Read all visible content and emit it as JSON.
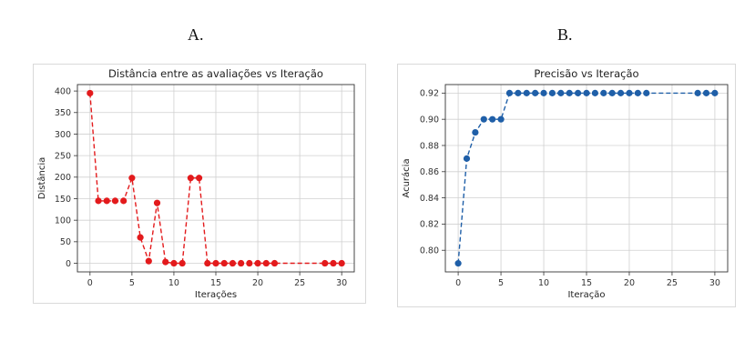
{
  "panels": [
    {
      "letter": "A."
    },
    {
      "letter": "B."
    }
  ],
  "colors": {
    "chart_a": "#e31a1c",
    "chart_b": "#1f5fa8",
    "grid": "#d0d0d0",
    "axis": "#333333"
  },
  "chart_data": [
    {
      "type": "line",
      "title": "Distância entre as avaliações vs Iteração",
      "xlabel": "Iterações",
      "ylabel": "Distância",
      "xlim": [
        -1.5,
        31.5
      ],
      "ylim": [
        -20,
        415
      ],
      "xticks": [
        0,
        5,
        10,
        15,
        20,
        25,
        30
      ],
      "yticks": [
        0,
        50,
        100,
        150,
        200,
        250,
        300,
        350,
        400
      ],
      "ytick_labels": [
        "0",
        "50",
        "100",
        "150",
        "200",
        "250",
        "300",
        "350",
        "400"
      ],
      "grid": true,
      "line_style": "dashed",
      "marker": "circle",
      "color": "#e31a1c",
      "x": [
        0,
        1,
        2,
        3,
        4,
        5,
        6,
        7,
        8,
        9,
        10,
        11,
        12,
        13,
        14,
        15,
        16,
        17,
        18,
        19,
        20,
        21,
        22,
        28,
        29,
        30
      ],
      "y": [
        395,
        145,
        145,
        145,
        145,
        198,
        60,
        5,
        140,
        3,
        0,
        0,
        198,
        198,
        0,
        0,
        0,
        0,
        0,
        0,
        0,
        0,
        0,
        0,
        0,
        0
      ]
    },
    {
      "type": "line",
      "title": "Precisão vs Iteração",
      "xlabel": "Iteração",
      "ylabel": "Acurácia",
      "xlim": [
        -1.5,
        31.5
      ],
      "ylim": [
        0.7835,
        0.9265
      ],
      "xticks": [
        0,
        5,
        10,
        15,
        20,
        25,
        30
      ],
      "yticks": [
        0.8,
        0.82,
        0.84,
        0.86,
        0.88,
        0.9,
        0.92
      ],
      "ytick_labels": [
        "0.80",
        "0.82",
        "0.84",
        "0.86",
        "0.88",
        "0.90",
        "0.92"
      ],
      "grid": true,
      "line_style": "dashed",
      "marker": "circle",
      "color": "#1f5fa8",
      "x": [
        0,
        1,
        2,
        3,
        4,
        5,
        6,
        7,
        8,
        9,
        10,
        11,
        12,
        13,
        14,
        15,
        16,
        17,
        18,
        19,
        20,
        21,
        22,
        28,
        29,
        30
      ],
      "y": [
        0.79,
        0.87,
        0.89,
        0.9,
        0.9,
        0.9,
        0.92,
        0.92,
        0.92,
        0.92,
        0.92,
        0.92,
        0.92,
        0.92,
        0.92,
        0.92,
        0.92,
        0.92,
        0.92,
        0.92,
        0.92,
        0.92,
        0.92,
        0.92,
        0.92,
        0.92
      ]
    }
  ]
}
